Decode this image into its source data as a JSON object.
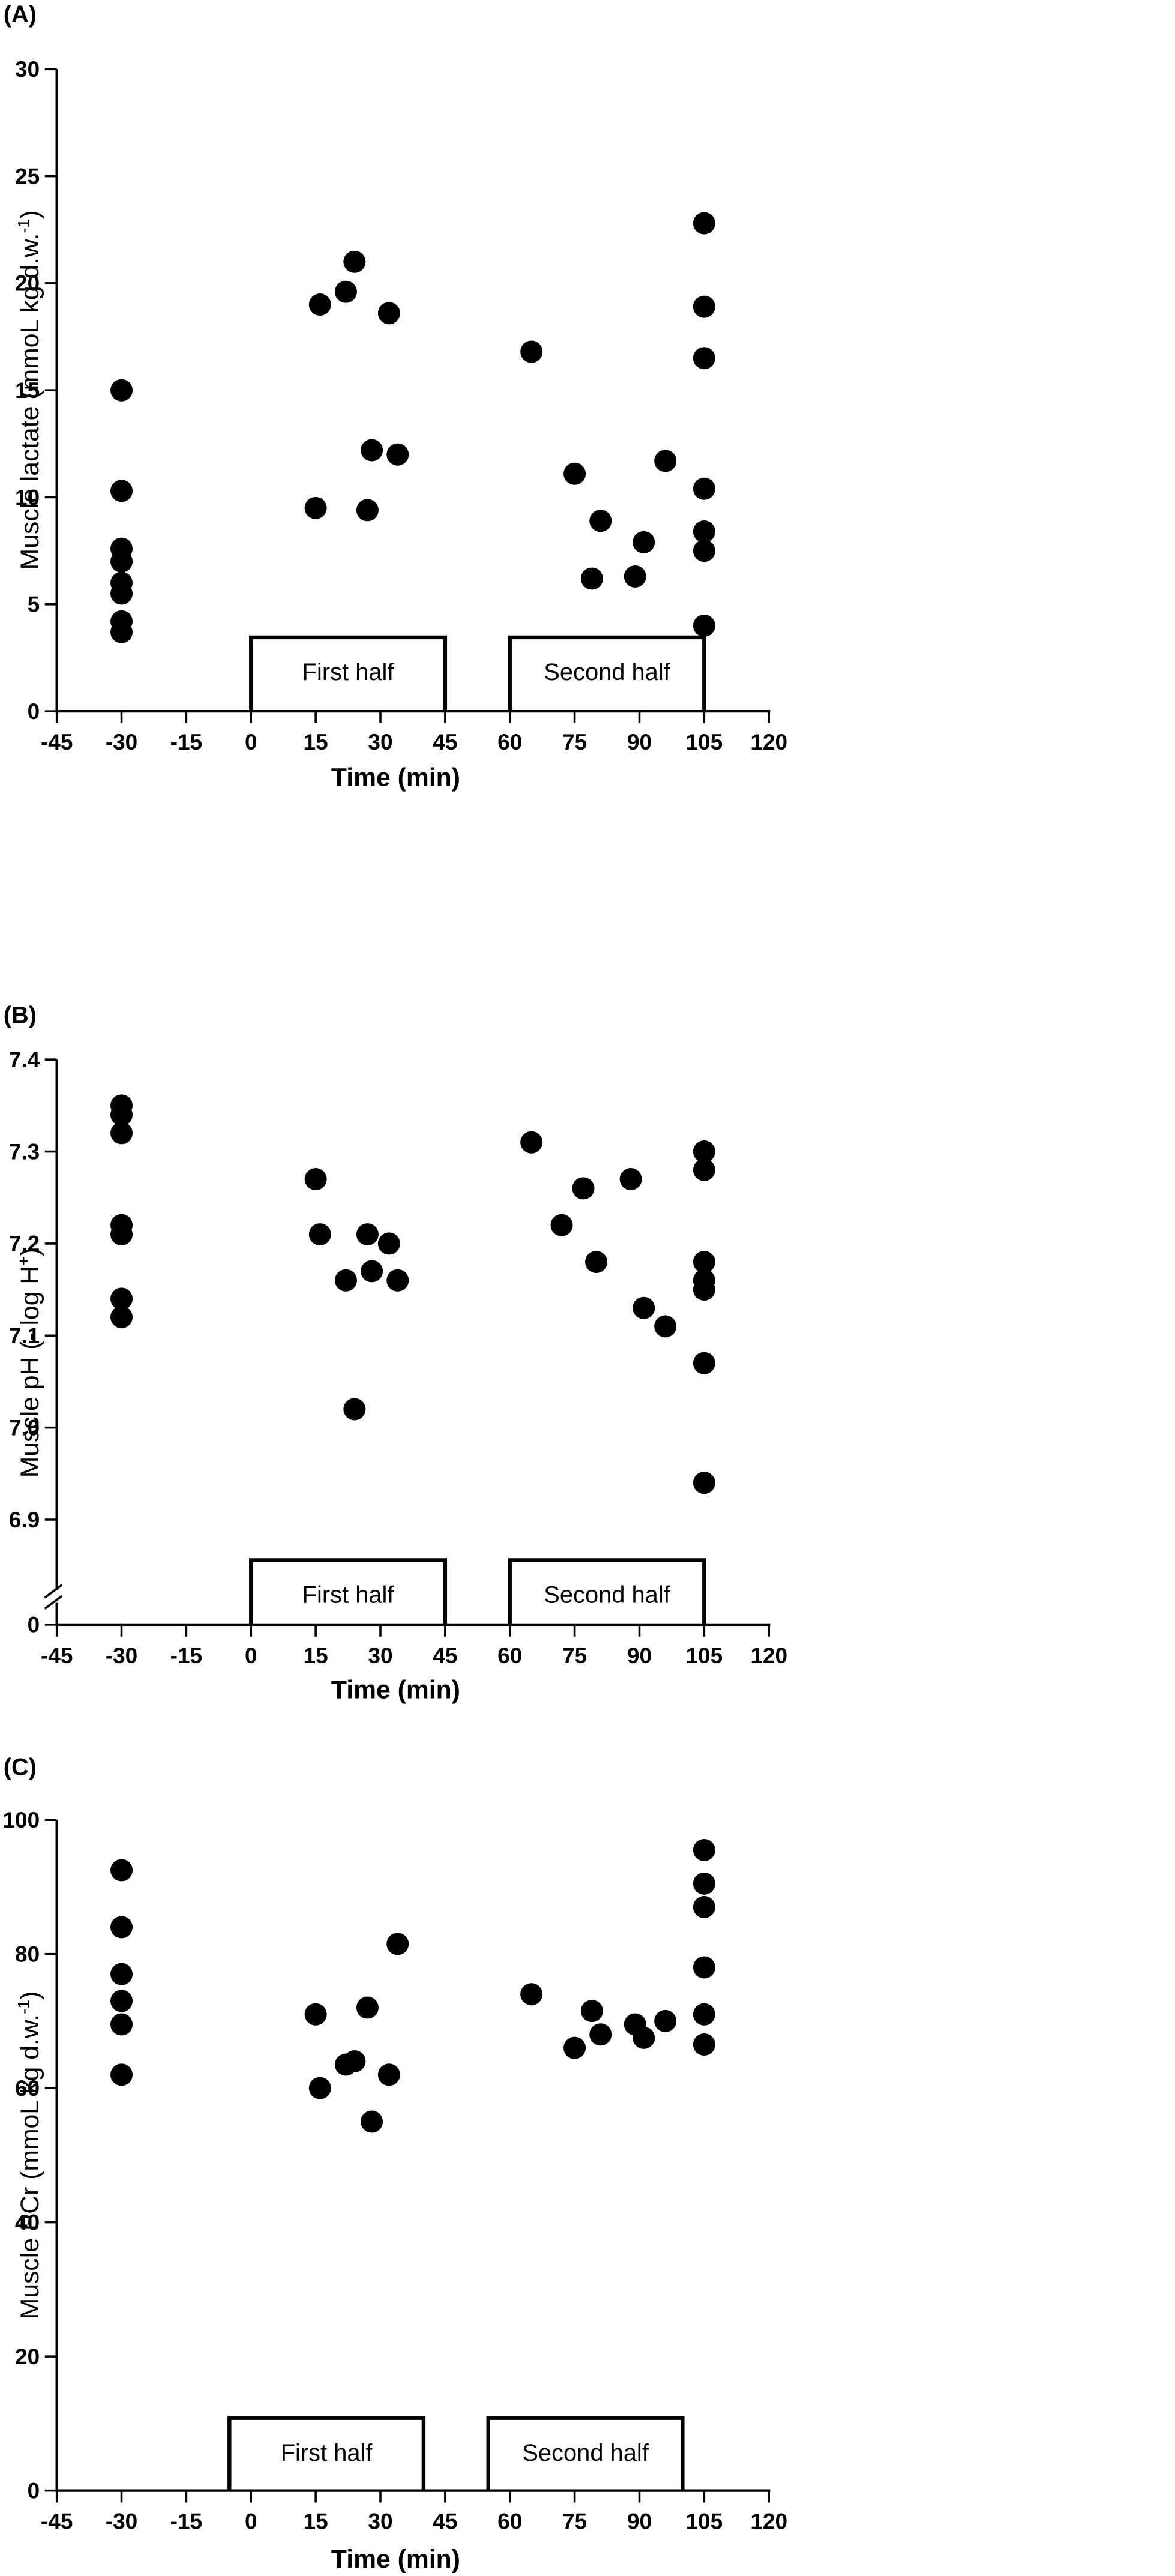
{
  "chart_data": [
    {
      "type": "scatter",
      "panel_label": "(A)",
      "title": "",
      "xlabel": "Time (min)",
      "ylabel": "Muscle lactate (mmoL kg d.w.",
      "ylabel_sup": "-1",
      "ylabel_close": ")",
      "xlim": [
        -45,
        120
      ],
      "ylim": [
        0,
        30
      ],
      "x_ticks": [
        "-45",
        "-30",
        "-15",
        "0",
        "15",
        "30",
        "45",
        "60",
        "75",
        "90",
        "105",
        "120"
      ],
      "y_ticks": [
        "0",
        "5",
        "10",
        "15",
        "20",
        "25",
        "30"
      ],
      "periods": [
        {
          "label": "First half",
          "start": 0,
          "end": 45
        },
        {
          "label": "Second half",
          "start": 60,
          "end": 105
        }
      ],
      "points": [
        {
          "x": -30,
          "y": 15.0
        },
        {
          "x": -30,
          "y": 10.3
        },
        {
          "x": -30,
          "y": 7.6
        },
        {
          "x": -30,
          "y": 7.0
        },
        {
          "x": -30,
          "y": 6.0
        },
        {
          "x": -30,
          "y": 5.5
        },
        {
          "x": -30,
          "y": 4.2
        },
        {
          "x": -30,
          "y": 3.7
        },
        {
          "x": 15,
          "y": 9.5
        },
        {
          "x": 16,
          "y": 19.0
        },
        {
          "x": 22,
          "y": 19.6
        },
        {
          "x": 24,
          "y": 21.0
        },
        {
          "x": 27,
          "y": 9.4
        },
        {
          "x": 28,
          "y": 12.2
        },
        {
          "x": 32,
          "y": 18.6
        },
        {
          "x": 34,
          "y": 12.0
        },
        {
          "x": 65,
          "y": 16.8
        },
        {
          "x": 75,
          "y": 11.1
        },
        {
          "x": 79,
          "y": 6.2
        },
        {
          "x": 81,
          "y": 8.9
        },
        {
          "x": 89,
          "y": 6.3
        },
        {
          "x": 91,
          "y": 7.9
        },
        {
          "x": 96,
          "y": 11.7
        },
        {
          "x": 105,
          "y": 22.8
        },
        {
          "x": 105,
          "y": 18.9
        },
        {
          "x": 105,
          "y": 16.5
        },
        {
          "x": 105,
          "y": 10.4
        },
        {
          "x": 105,
          "y": 8.4
        },
        {
          "x": 105,
          "y": 7.5
        },
        {
          "x": 105,
          "y": 4.0
        }
      ]
    },
    {
      "type": "scatter",
      "panel_label": "(B)",
      "title": "",
      "xlabel": "Time (min)",
      "ylabel": "Muscle pH (- log H",
      "ylabel_sup": "+",
      "ylabel_close": ")",
      "xlim": [
        -45,
        120
      ],
      "ylim": [
        6.85,
        7.4
      ],
      "axis_break": true,
      "y_ticks": [
        "7.4",
        "7.3",
        "7.2",
        "7.1",
        "7.0",
        "6.9"
      ],
      "y_tick_values": [
        7.4,
        7.3,
        7.2,
        7.1,
        7.0,
        6.9
      ],
      "y_zero_label": "0",
      "x_ticks": [
        "-45",
        "-30",
        "-15",
        "0",
        "15",
        "30",
        "45",
        "60",
        "75",
        "90",
        "105",
        "120"
      ],
      "periods": [
        {
          "label": "First half",
          "start": 0,
          "end": 45
        },
        {
          "label": "Second half",
          "start": 60,
          "end": 105
        }
      ],
      "points": [
        {
          "x": -30,
          "y": 7.35
        },
        {
          "x": -30,
          "y": 7.34
        },
        {
          "x": -30,
          "y": 7.32
        },
        {
          "x": -30,
          "y": 7.22
        },
        {
          "x": -30,
          "y": 7.21
        },
        {
          "x": -30,
          "y": 7.14
        },
        {
          "x": -30,
          "y": 7.12
        },
        {
          "x": 15,
          "y": 7.27
        },
        {
          "x": 16,
          "y": 7.21
        },
        {
          "x": 22,
          "y": 7.16
        },
        {
          "x": 24,
          "y": 7.02
        },
        {
          "x": 27,
          "y": 7.21
        },
        {
          "x": 28,
          "y": 7.17
        },
        {
          "x": 32,
          "y": 7.2
        },
        {
          "x": 34,
          "y": 7.16
        },
        {
          "x": 65,
          "y": 7.31
        },
        {
          "x": 72,
          "y": 7.22
        },
        {
          "x": 77,
          "y": 7.26
        },
        {
          "x": 80,
          "y": 7.18
        },
        {
          "x": 88,
          "y": 7.27
        },
        {
          "x": 91,
          "y": 7.13
        },
        {
          "x": 96,
          "y": 7.11
        },
        {
          "x": 105,
          "y": 7.3
        },
        {
          "x": 105,
          "y": 7.28
        },
        {
          "x": 105,
          "y": 7.18
        },
        {
          "x": 105,
          "y": 7.16
        },
        {
          "x": 105,
          "y": 7.15
        },
        {
          "x": 105,
          "y": 7.07
        },
        {
          "x": 105,
          "y": 6.94
        }
      ]
    },
    {
      "type": "scatter",
      "panel_label": "(C)",
      "title": "",
      "xlabel": "Time (min)",
      "ylabel": "Muscle PCr (mmoL kg d.w.",
      "ylabel_sup": "-1",
      "ylabel_close": ")",
      "xlim": [
        -45,
        120
      ],
      "ylim": [
        0,
        100
      ],
      "x_ticks": [
        "-45",
        "-30",
        "-15",
        "0",
        "15",
        "30",
        "45",
        "60",
        "75",
        "90",
        "105",
        "120"
      ],
      "y_ticks": [
        "0",
        "20",
        "40",
        "60",
        "80",
        "100"
      ],
      "periods": [
        {
          "label": "First half",
          "start": -5,
          "end": 40
        },
        {
          "label": "Second half",
          "start": 55,
          "end": 100
        }
      ],
      "points": [
        {
          "x": -30,
          "y": 92.5
        },
        {
          "x": -30,
          "y": 84.0
        },
        {
          "x": -30,
          "y": 77.0
        },
        {
          "x": -30,
          "y": 73.0
        },
        {
          "x": -30,
          "y": 69.5
        },
        {
          "x": -30,
          "y": 62.0
        },
        {
          "x": 15,
          "y": 71.0
        },
        {
          "x": 16,
          "y": 60.0
        },
        {
          "x": 22,
          "y": 63.5
        },
        {
          "x": 24,
          "y": 64.0
        },
        {
          "x": 27,
          "y": 72.0
        },
        {
          "x": 28,
          "y": 55.0
        },
        {
          "x": 32,
          "y": 62.0
        },
        {
          "x": 34,
          "y": 81.5
        },
        {
          "x": 65,
          "y": 74.0
        },
        {
          "x": 75,
          "y": 66.0
        },
        {
          "x": 79,
          "y": 71.5
        },
        {
          "x": 81,
          "y": 68.0
        },
        {
          "x": 89,
          "y": 69.5
        },
        {
          "x": 91,
          "y": 67.5
        },
        {
          "x": 96,
          "y": 70.0
        },
        {
          "x": 105,
          "y": 95.5
        },
        {
          "x": 105,
          "y": 90.5
        },
        {
          "x": 105,
          "y": 87.0
        },
        {
          "x": 105,
          "y": 78.0
        },
        {
          "x": 105,
          "y": 71.0
        },
        {
          "x": 105,
          "y": 66.5
        }
      ]
    }
  ]
}
